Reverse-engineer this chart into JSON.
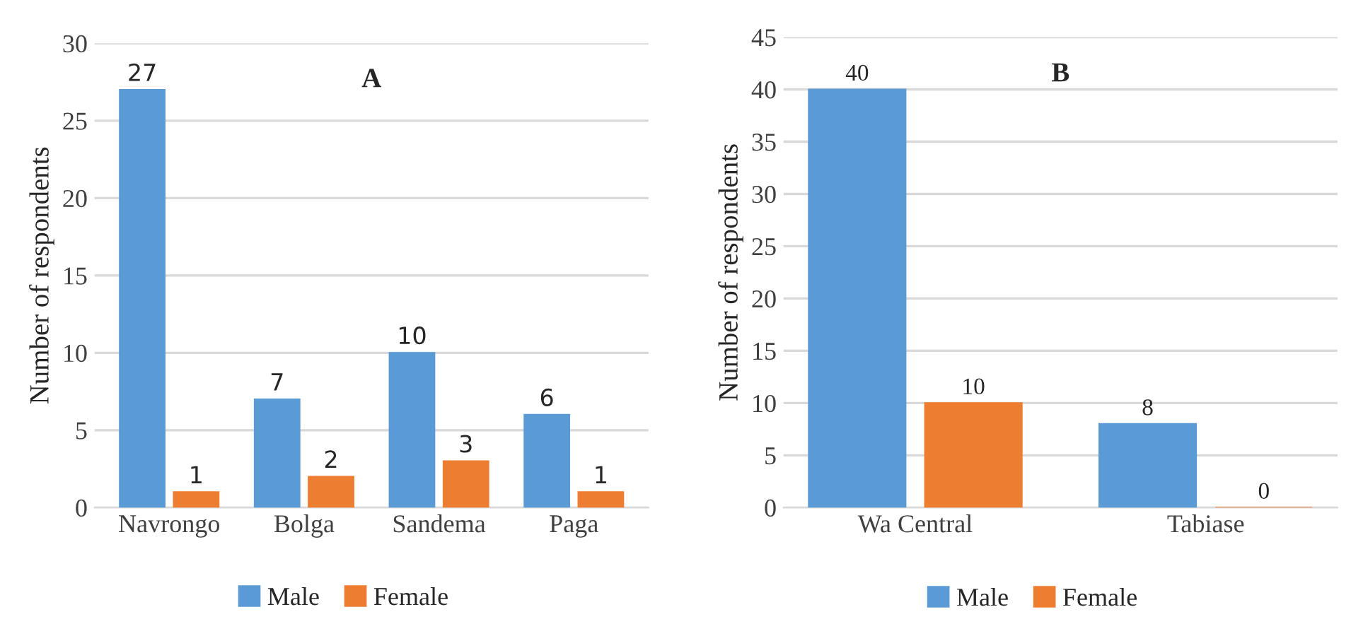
{
  "chart_data": [
    {
      "type": "bar",
      "title": "A",
      "ylabel": "Number of respondents",
      "categories": [
        "Navrongo",
        "Bolga",
        "Sandema",
        "Paga"
      ],
      "series": [
        {
          "name": "Male",
          "color": "#5b9bd5",
          "values": [
            27,
            7,
            10,
            6
          ]
        },
        {
          "name": "Female",
          "color": "#ed7d31",
          "values": [
            1,
            2,
            3,
            1
          ]
        }
      ],
      "ylim": [
        0,
        30
      ],
      "yticks": [
        0,
        5,
        10,
        15,
        20,
        25,
        30
      ],
      "grid": "y",
      "legend": "bottom",
      "data_labels": true
    },
    {
      "type": "bar",
      "title": "B",
      "ylabel": "Number of respondents",
      "categories": [
        "Wa Central",
        "Tabiase"
      ],
      "series": [
        {
          "name": "Male",
          "color": "#5b9bd5",
          "values": [
            40,
            8
          ]
        },
        {
          "name": "Female",
          "color": "#ed7d31",
          "values": [
            10,
            0
          ]
        }
      ],
      "ylim": [
        0,
        45
      ],
      "yticks": [
        0,
        5,
        10,
        15,
        20,
        25,
        30,
        35,
        40,
        45
      ],
      "grid": "y",
      "legend": "bottom",
      "data_labels": true
    }
  ]
}
